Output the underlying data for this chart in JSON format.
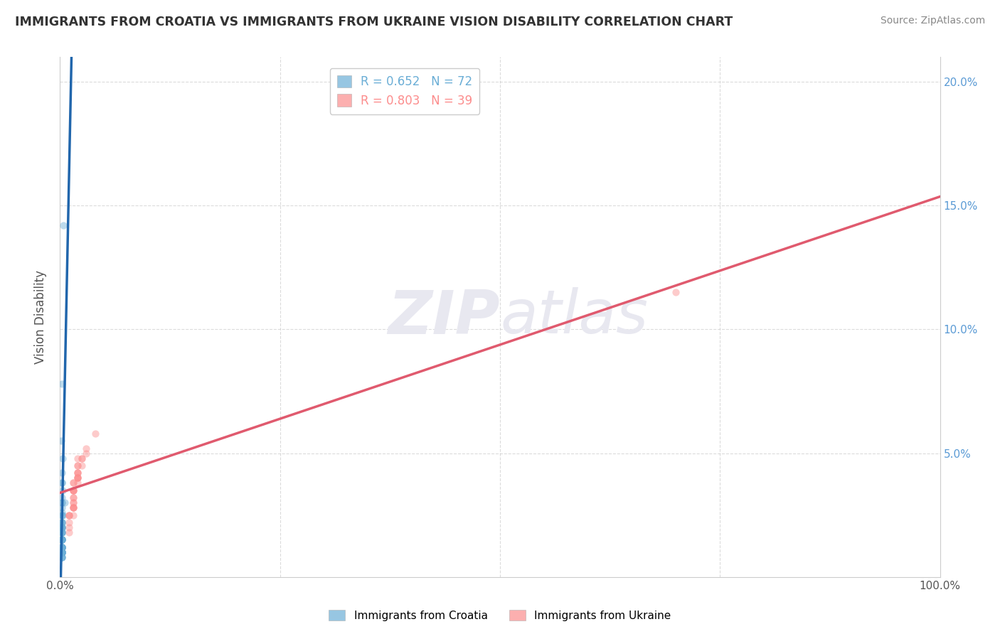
{
  "title": "IMMIGRANTS FROM CROATIA VS IMMIGRANTS FROM UKRAINE VISION DISABILITY CORRELATION CHART",
  "source": "Source: ZipAtlas.com",
  "ylabel": "Vision Disability",
  "watermark_zip": "ZIP",
  "watermark_atlas": "atlas",
  "legend_entries": [
    {
      "label": "R = 0.652   N = 72",
      "color": "#6baed6"
    },
    {
      "label": "R = 0.803   N = 39",
      "color": "#fc8d8d"
    }
  ],
  "bottom_legend": [
    {
      "label": "Immigrants from Croatia",
      "color": "#6baed6"
    },
    {
      "label": "Immigrants from Ukraine",
      "color": "#fc8d8d"
    }
  ],
  "croatia_x": [
    0.002,
    0.004,
    0.001,
    0.002,
    0.002,
    0.002,
    0.002,
    0.002,
    0.002,
    0.003,
    0.003,
    0.002,
    0.002,
    0.002,
    0.002,
    0.002,
    0.002,
    0.002,
    0.002,
    0.002,
    0.002,
    0.002,
    0.002,
    0.002,
    0.002,
    0.002,
    0.002,
    0.002,
    0.002,
    0.002,
    0.002,
    0.002,
    0.002,
    0.002,
    0.002,
    0.002,
    0.002,
    0.002,
    0.002,
    0.002,
    0.002,
    0.002,
    0.002,
    0.002,
    0.002,
    0.002,
    0.002,
    0.002,
    0.002,
    0.002,
    0.002,
    0.002,
    0.002,
    0.002,
    0.002,
    0.005,
    0.002,
    0.002,
    0.002,
    0.002,
    0.003,
    0.002,
    0.002,
    0.002,
    0.002,
    0.002,
    0.002,
    0.002,
    0.002,
    0.002,
    0.002,
    0.002
  ],
  "croatia_y": [
    0.078,
    0.142,
    0.055,
    0.038,
    0.03,
    0.025,
    0.02,
    0.028,
    0.022,
    0.035,
    0.048,
    0.038,
    0.042,
    0.032,
    0.022,
    0.026,
    0.018,
    0.02,
    0.022,
    0.03,
    0.025,
    0.02,
    0.015,
    0.018,
    0.022,
    0.02,
    0.018,
    0.015,
    0.012,
    0.02,
    0.015,
    0.018,
    0.015,
    0.018,
    0.012,
    0.01,
    0.02,
    0.012,
    0.015,
    0.012,
    0.01,
    0.012,
    0.015,
    0.01,
    0.012,
    0.012,
    0.01,
    0.008,
    0.01,
    0.015,
    0.012,
    0.01,
    0.008,
    0.01,
    0.012,
    0.03,
    0.01,
    0.012,
    0.01,
    0.015,
    0.025,
    0.01,
    0.012,
    0.01,
    0.015,
    0.01,
    0.012,
    0.01,
    0.008,
    0.01,
    0.01,
    0.008
  ],
  "ukraine_x": [
    0.01,
    0.015,
    0.01,
    0.015,
    0.015,
    0.02,
    0.02,
    0.015,
    0.01,
    0.015,
    0.02,
    0.015,
    0.02,
    0.025,
    0.02,
    0.015,
    0.02,
    0.02,
    0.015,
    0.015,
    0.01,
    0.015,
    0.01,
    0.015,
    0.01,
    0.03,
    0.02,
    0.015,
    0.015,
    0.025,
    0.02,
    0.02,
    0.015,
    0.02,
    0.03,
    0.025,
    0.015,
    0.04,
    0.7
  ],
  "ukraine_y": [
    0.025,
    0.035,
    0.025,
    0.038,
    0.035,
    0.04,
    0.045,
    0.032,
    0.025,
    0.038,
    0.042,
    0.035,
    0.045,
    0.048,
    0.042,
    0.035,
    0.04,
    0.048,
    0.025,
    0.03,
    0.02,
    0.028,
    0.022,
    0.028,
    0.018,
    0.05,
    0.04,
    0.028,
    0.032,
    0.045,
    0.042,
    0.04,
    0.03,
    0.038,
    0.052,
    0.048,
    0.028,
    0.058,
    0.115
  ],
  "xlim": [
    0,
    1.0
  ],
  "ylim": [
    0,
    0.21
  ],
  "yticks": [
    0.0,
    0.05,
    0.1,
    0.15,
    0.2
  ],
  "ytick_labels_right": [
    "",
    "5.0%",
    "10.0%",
    "15.0%",
    "20.0%"
  ],
  "xticks": [
    0.0,
    0.25,
    0.5,
    0.75,
    1.0
  ],
  "xtick_labels": [
    "0.0%",
    "",
    "",
    "",
    "100.0%"
  ],
  "grid_color": "#cccccc",
  "background_color": "#ffffff",
  "croatia_color": "#6baed6",
  "ukraine_color": "#fc8d8d",
  "trendline_croatia_color": "#2166ac",
  "trendline_ukraine_color": "#e05a6e",
  "trendline_croatia_dashed_color": "#aaaacc",
  "scatter_alpha": 0.45,
  "scatter_size": 55,
  "croatia_trendline_xlim": [
    0.0,
    0.02
  ],
  "ukraine_trendline_xlim": [
    0.0,
    1.0
  ],
  "croatia_dashed_xlim": [
    0.02,
    0.3
  ]
}
